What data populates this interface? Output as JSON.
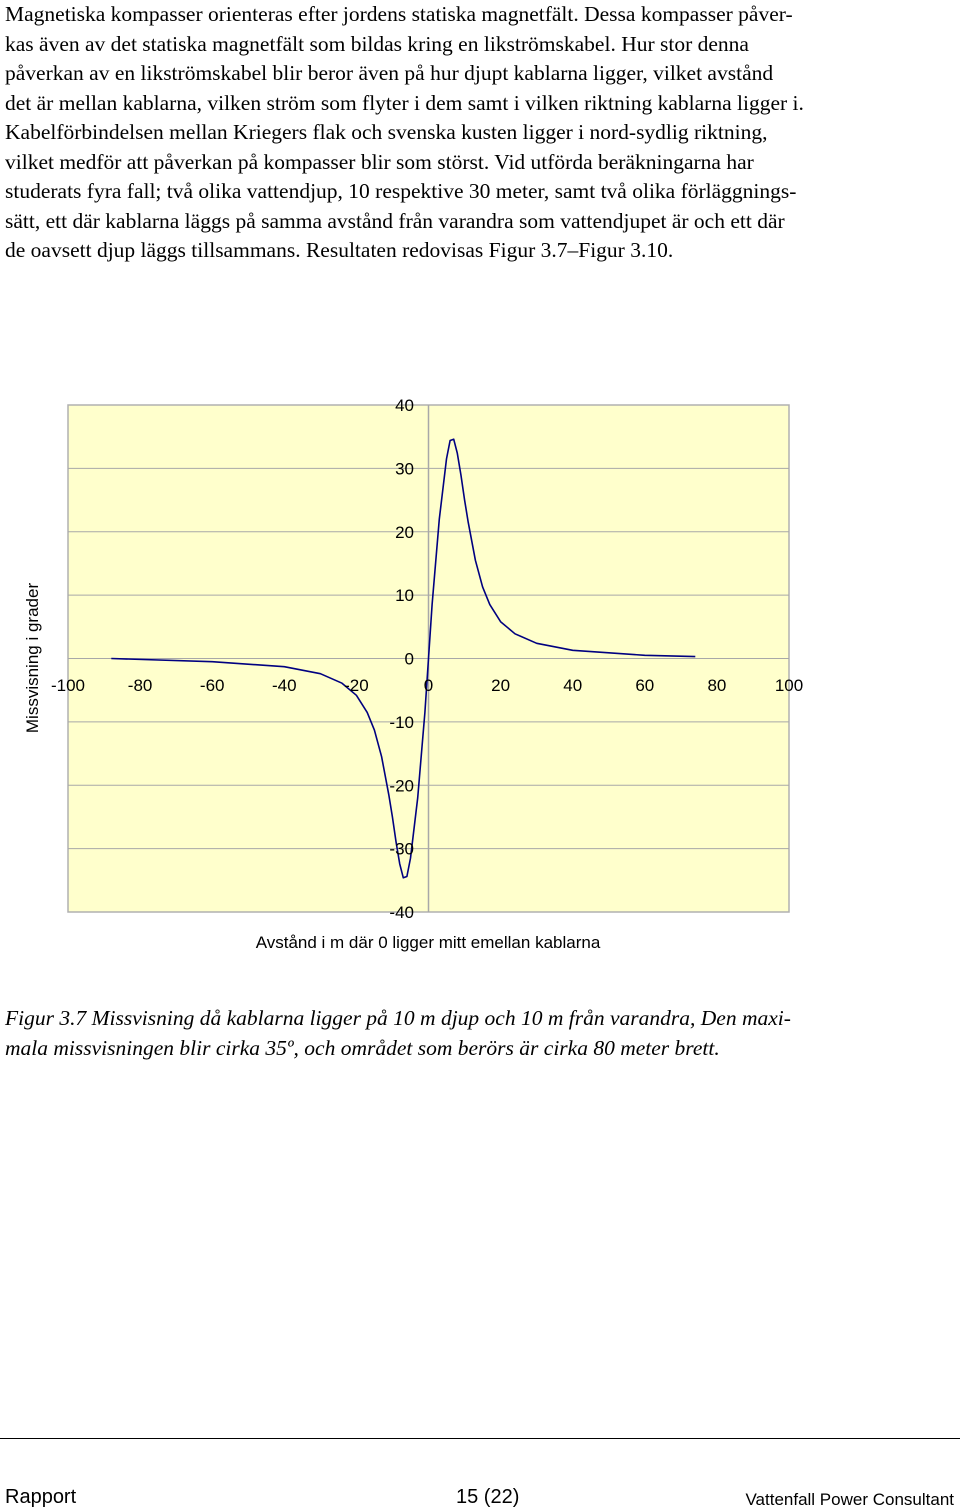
{
  "body_text": {
    "lines": [
      "Magnetiska kompasser orienteras efter jordens statiska magnetfält. Dessa kompasser påver-",
      "kas även av det statiska magnetfält som bildas kring en likströmskabel. Hur stor denna",
      "påverkan av en likströmskabel blir beror även på hur djupt kablarna ligger, vilket avstånd",
      "det är mellan kablarna, vilken ström som flyter i dem samt i vilken riktning kablarna ligger i.",
      "Kabelförbindelsen mellan Kriegers flak och svenska kusten ligger i nord-sydlig riktning,",
      "vilket medför att påverkan på kompasser blir som störst. Vid utförda beräkningarna har",
      "studerats fyra fall; två olika vattendjup, 10 respektive 30 meter, samt två olika förläggnings-",
      "sätt, ett där kablarna läggs på samma avstånd från varandra som vattendjupet är och ett där",
      "de oavsett djup läggs tillsammans. Resultaten redovisas Figur 3.7–Figur 3.10."
    ]
  },
  "chart_data": {
    "type": "line",
    "xlabel": "Avstånd i m där 0 ligger mitt emellan kablarna",
    "ylabel": "Missvisning i grader",
    "xlim": [
      -100,
      100
    ],
    "ylim": [
      -40,
      40
    ],
    "x_ticks": [
      "-100",
      "-80",
      "-60",
      "-40",
      "-20",
      "0",
      "20",
      "40",
      "60",
      "80",
      "100"
    ],
    "y_ticks": [
      "40",
      "30",
      "20",
      "10",
      "0",
      "-10",
      "-20",
      "-30",
      "-40"
    ],
    "grid": true,
    "background_color": "#ffffcc",
    "line_color": "#000080",
    "series": [
      {
        "x": [
          -88,
          -60,
          -40,
          -30,
          -24,
          -20,
          -17,
          -15,
          -13,
          -11,
          -10,
          -9,
          -8,
          -7,
          -6,
          -5,
          -3,
          -1,
          0,
          1,
          3,
          5,
          6,
          7,
          8,
          9,
          10,
          11,
          13,
          15,
          17,
          20,
          24,
          30,
          40,
          60,
          74
        ],
        "y": [
          0.0,
          -0.5,
          -1.3,
          -2.4,
          -3.9,
          -5.8,
          -8.5,
          -11.3,
          -15.5,
          -21.5,
          -25.0,
          -29.0,
          -32.4,
          -34.6,
          -34.4,
          -31.5,
          -22.0,
          -8.5,
          0,
          8.5,
          22.0,
          31.5,
          34.4,
          34.6,
          32.4,
          29.0,
          25.0,
          21.5,
          15.5,
          11.3,
          8.5,
          5.8,
          3.9,
          2.4,
          1.3,
          0.5,
          0.3
        ]
      }
    ]
  },
  "caption": {
    "lines": [
      "Figur 3.7 Missvisning då kablarna ligger på 10 m djup och 10 m från varandra, Den maxi-",
      "mala missvisningen blir cirka 35º, och området som berörs är cirka 80 meter brett."
    ]
  },
  "footer": {
    "left": "Rapport",
    "center": "15 (22)",
    "right": "Vattenfall Power Consultant"
  }
}
